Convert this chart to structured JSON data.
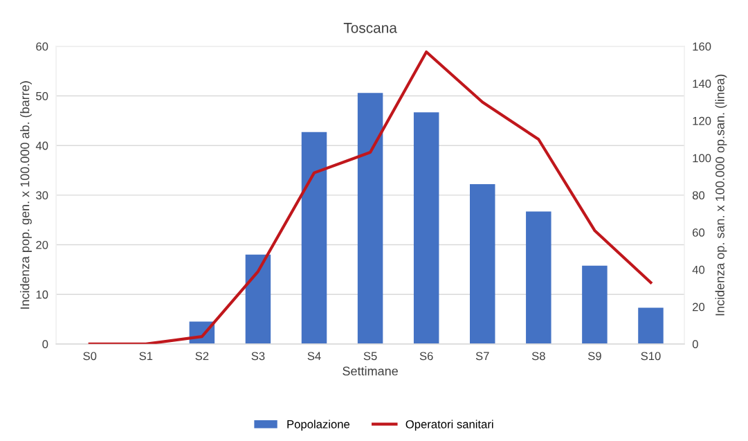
{
  "chart_data": {
    "type": "bar",
    "title": "Toscana",
    "xlabel": "Settimane",
    "ylabel": "Incidenza pop. gen. x 100.000 ab. (barre)",
    "y2label": "Incidenza op. san. x 100.000 op.san. (linea)",
    "categories": [
      "S0",
      "S1",
      "S2",
      "S3",
      "S4",
      "S5",
      "S6",
      "S7",
      "S8",
      "S9",
      "S10"
    ],
    "series": [
      {
        "name": "Popolazione",
        "color": "#4472c4",
        "values": [
          0,
          null,
          4.5,
          18.0,
          42.7,
          50.6,
          46.7,
          32.2,
          26.7,
          15.8,
          7.3
        ]
      },
      {
        "name": "Operatori sanitari",
        "type": "line",
        "axis": "y2",
        "color": "#c0171c",
        "values": [
          0,
          0,
          4,
          39,
          92,
          103,
          157,
          130,
          110,
          61,
          33
        ]
      }
    ],
    "ylim": [
      0,
      60
    ],
    "yticks": [
      0,
      10,
      20,
      30,
      40,
      50,
      60
    ],
    "y2lim": [
      0,
      160
    ],
    "y2ticks": [
      0,
      20,
      40,
      60,
      80,
      100,
      120,
      140,
      160
    ],
    "grid": "y",
    "legend": "bottom",
    "marker": "none",
    "line_style": "solid"
  }
}
